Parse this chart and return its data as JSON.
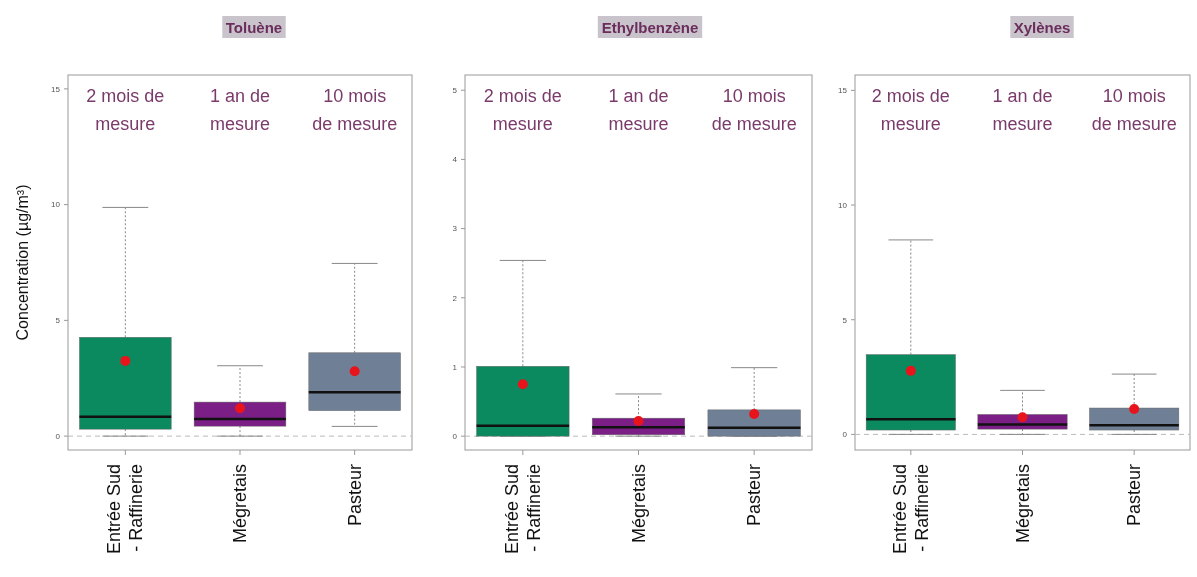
{
  "chart_data": [
    {
      "type": "box",
      "title": "Toluène",
      "ylabel": "Concentration (µg/m³)",
      "categories": [
        "Entrée Sud\n- Raffinerie",
        "Mégretais",
        "Pasteur"
      ],
      "colors": [
        "#0b8a5f",
        "#7b1f86",
        "#6f8096"
      ],
      "ylim": [
        -0.6,
        15.6
      ],
      "yticks": [
        0,
        5,
        10,
        15
      ],
      "ref_lines": [
        {
          "axis": "y",
          "value": 0,
          "color": "#bbbbbb",
          "line_style": "dashed"
        }
      ],
      "annotations": [
        "2 mois de\nmesure",
        "1 an de\nmesure",
        "10 mois\nde mesure"
      ],
      "boxes": [
        {
          "low": 0,
          "q1": 0.3,
          "median": 0.84,
          "q3": 4.27,
          "high": 9.88,
          "mean": 3.25
        },
        {
          "low": 0,
          "q1": 0.43,
          "median": 0.74,
          "q3": 1.47,
          "high": 3.04,
          "mean": 1.2
        },
        {
          "low": 0.42,
          "q1": 1.1,
          "median": 1.9,
          "q3": 3.6,
          "high": 7.46,
          "mean": 2.8
        }
      ]
    },
    {
      "type": "box",
      "title": "Ethylbenzène",
      "categories": [
        "Entrée Sud\n- Raffinerie",
        "Mégretais",
        "Pasteur"
      ],
      "colors": [
        "#0b8a5f",
        "#7b1f86",
        "#6f8096"
      ],
      "ylim": [
        -0.2,
        5.22
      ],
      "yticks": [
        0,
        1,
        2,
        3,
        4,
        5
      ],
      "ref_lines": [
        {
          "axis": "y",
          "value": 0,
          "color": "#bbbbbb",
          "line_style": "dashed"
        }
      ],
      "annotations": [
        "2 mois de\nmesure",
        "1 an de\nmesure",
        "10 mois\nde mesure"
      ],
      "boxes": [
        {
          "low": 0,
          "q1": 0,
          "median": 0.15,
          "q3": 1.01,
          "high": 2.54,
          "mean": 0.75
        },
        {
          "low": 0,
          "q1": 0.02,
          "median": 0.13,
          "q3": 0.26,
          "high": 0.61,
          "mean": 0.22
        },
        {
          "low": 0,
          "q1": 0,
          "median": 0.12,
          "q3": 0.38,
          "high": 0.99,
          "mean": 0.32
        }
      ]
    },
    {
      "type": "box",
      "title": "Xylènes",
      "categories": [
        "Entrée Sud\n- Raffinerie",
        "Mégretais",
        "Pasteur"
      ],
      "colors": [
        "#0b8a5f",
        "#7b1f86",
        "#6f8096"
      ],
      "ylim": [
        -0.68,
        15.67
      ],
      "yticks": [
        0,
        5,
        10,
        15
      ],
      "ref_lines": [
        {
          "axis": "y",
          "value": 0,
          "color": "#bbbbbb",
          "line_style": "dashed"
        }
      ],
      "annotations": [
        "2 mois de\nmesure",
        "1 an de\nmesure",
        "10 mois\nde mesure"
      ],
      "boxes": [
        {
          "low": 0,
          "q1": 0.19,
          "median": 0.66,
          "q3": 3.48,
          "high": 8.48,
          "mean": 2.77
        },
        {
          "low": 0,
          "q1": 0.23,
          "median": 0.43,
          "q3": 0.87,
          "high": 1.92,
          "mean": 0.75
        },
        {
          "low": 0,
          "q1": 0.19,
          "median": 0.4,
          "q3": 1.15,
          "high": 2.63,
          "mean": 1.11
        }
      ]
    }
  ]
}
